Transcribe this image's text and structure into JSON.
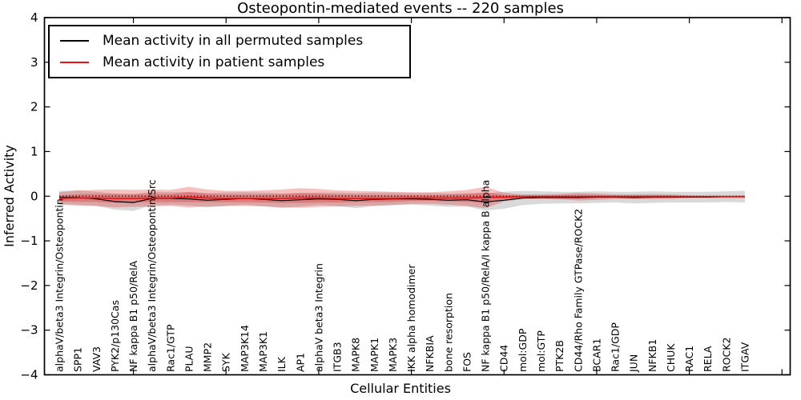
{
  "chart_data": {
    "type": "line",
    "title": "Osteopontin-mediated events -- 220 samples",
    "xlabel": "Cellular Entities",
    "ylabel": "Inferred Activity",
    "ylim": [
      -4,
      4
    ],
    "grid": false,
    "legend_position": "upper left",
    "zero_reference_line": 0,
    "yticks": [
      {
        "value": 4,
        "label": "4"
      },
      {
        "value": 3,
        "label": "3"
      },
      {
        "value": 2,
        "label": "2"
      },
      {
        "value": 1,
        "label": "1"
      },
      {
        "value": 0,
        "label": "0"
      },
      {
        "value": -1,
        "label": "−1"
      },
      {
        "value": -2,
        "label": "−2"
      },
      {
        "value": -3,
        "label": "−3"
      },
      {
        "value": -4,
        "label": "−4"
      }
    ],
    "categories": [
      "alphaV/beta3 Integrin/Osteopontin",
      "SPP1",
      "VAV3",
      "PYK2/p130Cas",
      "NF kappa B1 p50/RelA",
      "alphaV/beta3 Integrin/Osteopontin/Src",
      "Rac1/GTP",
      "PLAU",
      "MMP2",
      "SYK",
      "MAP3K14",
      "MAP3K1",
      "ILK",
      "AP1",
      "alphaV beta3 Integrin",
      "ITGB3",
      "MAPK8",
      "MAPK1",
      "MAPK3",
      "IKK alpha homodimer",
      "NFKBIA",
      "bone resorption",
      "FOS",
      "NF kappa B1 p50/RelA/I kappa B alpha",
      "CD44",
      "mol:GDP",
      "mol:GTP",
      "PTK2B",
      "CD44/Rho Family GTPase/ROCK2",
      "BCAR1",
      "Rac1/GDP",
      "JUN",
      "NFKB1",
      "CHUK",
      "RAC1",
      "RELA",
      "ROCK2",
      "ITGAV"
    ],
    "series": [
      {
        "name": "Mean activity in all permuted samples",
        "color": "#000000",
        "band_color": "#808080",
        "values": [
          -0.03,
          -0.03,
          -0.06,
          -0.12,
          -0.14,
          -0.05,
          -0.05,
          -0.06,
          -0.09,
          -0.07,
          -0.05,
          -0.07,
          -0.1,
          -0.08,
          -0.06,
          -0.07,
          -0.1,
          -0.07,
          -0.06,
          -0.06,
          -0.07,
          -0.09,
          -0.08,
          -0.13,
          -0.09,
          -0.04,
          -0.03,
          -0.03,
          -0.03,
          -0.02,
          -0.02,
          -0.03,
          -0.02,
          -0.02,
          -0.02,
          -0.02,
          -0.01,
          -0.01
        ],
        "band_halfwidth": [
          0.15,
          0.16,
          0.16,
          0.18,
          0.19,
          0.15,
          0.14,
          0.15,
          0.16,
          0.15,
          0.14,
          0.15,
          0.16,
          0.15,
          0.14,
          0.15,
          0.17,
          0.15,
          0.14,
          0.13,
          0.14,
          0.15,
          0.15,
          0.19,
          0.19,
          0.16,
          0.14,
          0.13,
          0.13,
          0.13,
          0.12,
          0.13,
          0.13,
          0.12,
          0.12,
          0.12,
          0.12,
          0.13
        ]
      },
      {
        "name": "Mean activity in patient samples",
        "color": "#ee1111",
        "band_color": "#dd2222",
        "values": [
          -0.05,
          -0.04,
          -0.04,
          -0.05,
          -0.05,
          -0.04,
          -0.04,
          -0.02,
          -0.04,
          -0.05,
          -0.05,
          -0.05,
          -0.05,
          -0.04,
          -0.04,
          -0.05,
          -0.05,
          -0.05,
          -0.05,
          -0.04,
          -0.04,
          -0.04,
          -0.04,
          -0.03,
          -0.02,
          -0.01,
          -0.01,
          -0.01,
          -0.01,
          -0.01,
          -0.01,
          -0.01,
          -0.01,
          -0.01,
          -0.01,
          -0.01,
          -0.01,
          -0.01
        ],
        "band_halfwidth": [
          0.14,
          0.17,
          0.18,
          0.2,
          0.19,
          0.19,
          0.18,
          0.23,
          0.19,
          0.17,
          0.17,
          0.18,
          0.2,
          0.22,
          0.2,
          0.18,
          0.17,
          0.16,
          0.15,
          0.13,
          0.13,
          0.15,
          0.18,
          0.24,
          0.1,
          0.05,
          0.05,
          0.06,
          0.085,
          0.07,
          0.05,
          0.05,
          0.055,
          0.05,
          0.03,
          0.025,
          0.025,
          0.03
        ]
      }
    ]
  }
}
